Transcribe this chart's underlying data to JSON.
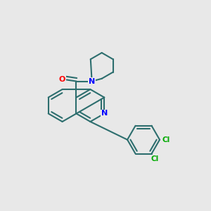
{
  "bg_color": "#e8e8e8",
  "bond_color": "#2d6e6e",
  "N_color": "#0000ff",
  "O_color": "#ff0000",
  "Cl_color": "#00aa00",
  "bond_width": 1.5,
  "figsize": [
    3.0,
    3.0
  ],
  "dpi": 100,
  "xlim": [
    -0.05,
    1.05
  ],
  "ylim": [
    -0.05,
    1.05
  ]
}
